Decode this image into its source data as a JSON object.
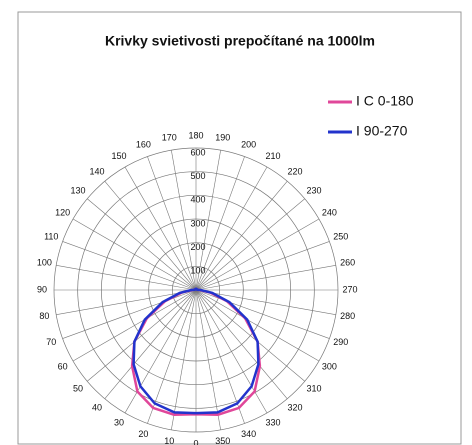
{
  "chart_data": {
    "type": "polar",
    "title": "Krivky svietivosti prepočítané na 1000lm",
    "angles": [
      0,
      10,
      20,
      30,
      40,
      50,
      60,
      70,
      80,
      90,
      100,
      110,
      120,
      130,
      140,
      150,
      160,
      170,
      180,
      190,
      200,
      210,
      220,
      230,
      240,
      250,
      260,
      270,
      280,
      290,
      300,
      310,
      320,
      330,
      340,
      350
    ],
    "rlim": [
      0,
      600
    ],
    "rticks": [
      100,
      200,
      300,
      400,
      500,
      600
    ],
    "grid": true,
    "legend": "upper right",
    "series": [
      {
        "name": "I C 0-180",
        "color": "#e0479a",
        "values": [
          525,
          535,
          530,
          495,
          420,
          340,
          240,
          140,
          60,
          15,
          5,
          5,
          5,
          5,
          5,
          5,
          5,
          5,
          5,
          5,
          5,
          5,
          5,
          5,
          5,
          5,
          5,
          15,
          60,
          140,
          240,
          340,
          420,
          495,
          530,
          535
        ]
      },
      {
        "name": "I 90-270",
        "color": "#2233cc",
        "values": [
          520,
          525,
          510,
          470,
          410,
          340,
          250,
          150,
          70,
          20,
          5,
          5,
          5,
          5,
          5,
          5,
          5,
          5,
          5,
          5,
          5,
          5,
          5,
          5,
          5,
          5,
          5,
          20,
          70,
          150,
          250,
          340,
          410,
          470,
          510,
          525
        ]
      }
    ]
  }
}
